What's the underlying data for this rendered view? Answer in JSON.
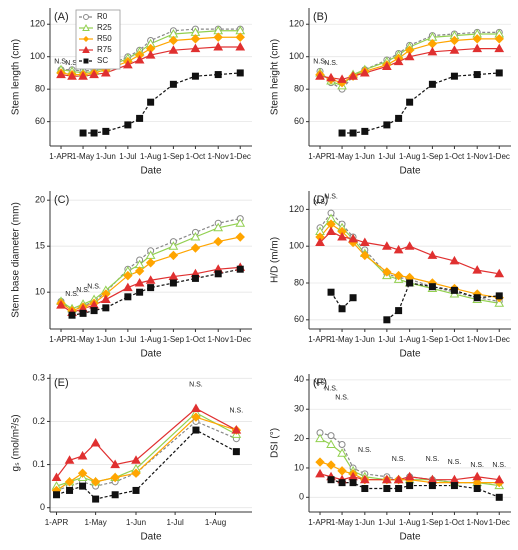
{
  "chart_data": [
    {
      "type": "line",
      "panel": "(A)",
      "y_label": "Stem length (cm)",
      "x_label": "Date",
      "legend": "top-left",
      "x": [
        0,
        15,
        30,
        45,
        61,
        91,
        107,
        122,
        153,
        183,
        214,
        244
      ],
      "xlim": [
        -15,
        260
      ],
      "xticks": [
        {
          "value": 0,
          "label": "1-APR"
        },
        {
          "value": 30,
          "label": "1-May"
        },
        {
          "value": 61,
          "label": "1-Jun"
        },
        {
          "value": 91,
          "label": "1-Jul"
        },
        {
          "value": 122,
          "label": "1-Aug"
        },
        {
          "value": 153,
          "label": "1-Sep"
        },
        {
          "value": 183,
          "label": "1-Oct"
        },
        {
          "value": 214,
          "label": "1-Nov"
        },
        {
          "value": 244,
          "label": "1-Dec"
        }
      ],
      "ylim": [
        45,
        130
      ],
      "yticks": [
        60,
        80,
        100,
        120
      ],
      "grid": true,
      "annotations": [
        {
          "text": "N.S.",
          "x": 0,
          "y": 97
        },
        {
          "text": "N.S.",
          "x": 15,
          "y": 96
        }
      ],
      "series": [
        {
          "name": "R0",
          "color": "#888888",
          "marker": "circle",
          "dashed": true,
          "values": [
            92,
            92,
            91,
            92,
            94,
            100,
            104,
            110,
            116,
            117,
            117,
            117
          ]
        },
        {
          "name": "R25",
          "color": "#92d050",
          "marker": "triangle-open",
          "dashed": false,
          "values": [
            92,
            91,
            90,
            91,
            93,
            99,
            103,
            108,
            114,
            115,
            116,
            116
          ]
        },
        {
          "name": "R50",
          "color": "#ffa500",
          "marker": "diamond",
          "dashed": false,
          "values": [
            90,
            89,
            89,
            90,
            92,
            97,
            101,
            105,
            110,
            111,
            112,
            112
          ]
        },
        {
          "name": "R75",
          "color": "#e03030",
          "marker": "triangle",
          "dashed": false,
          "values": [
            89,
            88,
            88,
            89,
            90,
            95,
            98,
            101,
            104,
            105,
            106,
            106
          ]
        },
        {
          "name": "SC",
          "color": "#111111",
          "marker": "square",
          "dashed": true,
          "values": [
            null,
            null,
            53,
            53,
            54,
            58,
            62,
            72,
            83,
            88,
            89,
            90
          ]
        }
      ]
    },
    {
      "type": "line",
      "panel": "(B)",
      "y_label": "Stem height (cm)",
      "x_label": "Date",
      "x": [
        0,
        15,
        30,
        45,
        61,
        91,
        107,
        122,
        153,
        183,
        214,
        244
      ],
      "xlim": [
        -15,
        260
      ],
      "xticks": [
        {
          "value": 0,
          "label": "1-APR"
        },
        {
          "value": 30,
          "label": "1-May"
        },
        {
          "value": 61,
          "label": "1-Jun"
        },
        {
          "value": 91,
          "label": "1-Jul"
        },
        {
          "value": 122,
          "label": "1-Aug"
        },
        {
          "value": 153,
          "label": "1-Sep"
        },
        {
          "value": 183,
          "label": "1-Oct"
        },
        {
          "value": 214,
          "label": "1-Nov"
        },
        {
          "value": 244,
          "label": "1-Dec"
        }
      ],
      "ylim": [
        45,
        130
      ],
      "yticks": [
        60,
        80,
        100,
        120
      ],
      "grid": true,
      "annotations": [
        {
          "text": "N.S.",
          "x": 0,
          "y": 97
        },
        {
          "text": "N.S.",
          "x": 15,
          "y": 96
        }
      ],
      "series": [
        {
          "name": "R0",
          "color": "#888888",
          "marker": "circle",
          "dashed": true,
          "values": [
            91,
            84,
            80,
            88,
            92,
            98,
            102,
            107,
            113,
            114,
            115,
            115
          ]
        },
        {
          "name": "R25",
          "color": "#92d050",
          "marker": "triangle-open",
          "dashed": false,
          "values": [
            90,
            85,
            82,
            89,
            92,
            97,
            101,
            106,
            112,
            113,
            114,
            114
          ]
        },
        {
          "name": "R50",
          "color": "#ffa500",
          "marker": "diamond",
          "dashed": false,
          "values": [
            89,
            86,
            84,
            88,
            91,
            95,
            99,
            104,
            108,
            110,
            111,
            111
          ]
        },
        {
          "name": "R75",
          "color": "#e03030",
          "marker": "triangle",
          "dashed": false,
          "values": [
            88,
            87,
            86,
            88,
            90,
            94,
            97,
            100,
            103,
            104,
            105,
            105
          ]
        },
        {
          "name": "SC",
          "color": "#111111",
          "marker": "square",
          "dashed": true,
          "values": [
            null,
            null,
            53,
            53,
            54,
            58,
            62,
            72,
            83,
            88,
            89,
            90
          ]
        }
      ]
    },
    {
      "type": "line",
      "panel": "(C)",
      "y_label": "Stem base diameter (mm)",
      "x_label": "Date",
      "x": [
        0,
        15,
        30,
        45,
        61,
        91,
        107,
        122,
        153,
        183,
        214,
        244
      ],
      "xlim": [
        -15,
        260
      ],
      "xticks": [
        {
          "value": 0,
          "label": "1-APR"
        },
        {
          "value": 30,
          "label": "1-May"
        },
        {
          "value": 61,
          "label": "1-Jun"
        },
        {
          "value": 91,
          "label": "1-Jul"
        },
        {
          "value": 122,
          "label": "1-Aug"
        },
        {
          "value": 153,
          "label": "1-Sep"
        },
        {
          "value": 183,
          "label": "1-Oct"
        },
        {
          "value": 214,
          "label": "1-Nov"
        },
        {
          "value": 244,
          "label": "1-Dec"
        }
      ],
      "ylim": [
        6,
        21
      ],
      "yticks": [
        10,
        15,
        20
      ],
      "grid": true,
      "annotations": [
        {
          "text": "N.S.",
          "x": 15,
          "y": 9.8
        },
        {
          "text": "N.S.",
          "x": 30,
          "y": 10.2
        },
        {
          "text": "N.S.",
          "x": 45,
          "y": 10.6
        }
      ],
      "series": [
        {
          "name": "R0",
          "color": "#888888",
          "marker": "circle",
          "dashed": true,
          "values": [
            9,
            8,
            8.5,
            9,
            10,
            12.5,
            13.5,
            14.5,
            15.5,
            16.5,
            17.5,
            18
          ]
        },
        {
          "name": "R25",
          "color": "#92d050",
          "marker": "triangle-open",
          "dashed": false,
          "values": [
            9,
            8.2,
            8.7,
            9.2,
            10.2,
            12.3,
            13,
            14,
            15,
            16,
            17,
            17.5
          ]
        },
        {
          "name": "R50",
          "color": "#ffa500",
          "marker": "diamond",
          "dashed": false,
          "values": [
            8.8,
            8,
            8.4,
            8.8,
            9.8,
            11.8,
            12.3,
            13.2,
            14,
            14.8,
            15.5,
            16
          ]
        },
        {
          "name": "R75",
          "color": "#e03030",
          "marker": "triangle",
          "dashed": false,
          "values": [
            8.6,
            7.8,
            8.2,
            8.6,
            9.2,
            10.5,
            11,
            11.3,
            11.7,
            12,
            12.5,
            12.7
          ]
        },
        {
          "name": "SC",
          "color": "#111111",
          "marker": "square",
          "dashed": true,
          "values": [
            null,
            7.5,
            7.7,
            8,
            8.3,
            9.5,
            10,
            10.5,
            11,
            11.5,
            12,
            12.5
          ]
        }
      ]
    },
    {
      "type": "line",
      "panel": "(D)",
      "y_label": "H/D (m/m)",
      "x_label": "Date",
      "x": [
        0,
        15,
        30,
        45,
        61,
        91,
        107,
        122,
        153,
        183,
        214,
        244
      ],
      "xlim": [
        -15,
        260
      ],
      "xticks": [
        {
          "value": 0,
          "label": "1-APR"
        },
        {
          "value": 30,
          "label": "1-May"
        },
        {
          "value": 61,
          "label": "1-Jun"
        },
        {
          "value": 91,
          "label": "1-Jul"
        },
        {
          "value": 122,
          "label": "1-Aug"
        },
        {
          "value": 153,
          "label": "1-Sep"
        },
        {
          "value": 183,
          "label": "1-Oct"
        },
        {
          "value": 214,
          "label": "1-Nov"
        },
        {
          "value": 244,
          "label": "1-Dec"
        }
      ],
      "ylim": [
        55,
        130
      ],
      "yticks": [
        60,
        80,
        100,
        120
      ],
      "grid": true,
      "annotations": [
        {
          "text": "N.S.",
          "x": 0,
          "y": 124
        },
        {
          "text": "N.S.",
          "x": 15,
          "y": 127
        }
      ],
      "series": [
        {
          "name": "R0",
          "color": "#888888",
          "marker": "circle",
          "dashed": true,
          "values": [
            110,
            118,
            112,
            105,
            98,
            85,
            83,
            82,
            78,
            75,
            72,
            70
          ]
        },
        {
          "name": "R25",
          "color": "#92d050",
          "marker": "triangle-open",
          "dashed": false,
          "values": [
            108,
            115,
            110,
            104,
            96,
            84,
            82,
            80,
            77,
            74,
            71,
            69
          ]
        },
        {
          "name": "R50",
          "color": "#ffa500",
          "marker": "diamond",
          "dashed": false,
          "values": [
            105,
            112,
            108,
            102,
            95,
            86,
            84,
            83,
            80,
            77,
            74,
            72
          ]
        },
        {
          "name": "R75",
          "color": "#e03030",
          "marker": "triangle",
          "dashed": false,
          "values": [
            102,
            108,
            105,
            104,
            102,
            100,
            98,
            100,
            95,
            92,
            87,
            85
          ]
        },
        {
          "name": "SC",
          "color": "#111111",
          "marker": "square",
          "dashed": true,
          "values": [
            null,
            75,
            66,
            72,
            null,
            60,
            65,
            80,
            78,
            76,
            72,
            73
          ]
        }
      ]
    },
    {
      "type": "line",
      "panel": "(E)",
      "y_label": "gₛ (mol/m²/s)",
      "x_label": "Date",
      "x": [
        0,
        10,
        20,
        30,
        45,
        61,
        107,
        138
      ],
      "xlim": [
        -5,
        150
      ],
      "xticks": [
        {
          "value": 0,
          "label": "1-APR"
        },
        {
          "value": 30,
          "label": "1-May"
        },
        {
          "value": 61,
          "label": "1-Jun"
        },
        {
          "value": 91,
          "label": "1-Jul"
        },
        {
          "value": 122,
          "label": "1-Aug"
        }
      ],
      "ylim": [
        -0.01,
        0.31
      ],
      "yticks": [
        0,
        0.1,
        0.2,
        0.3
      ],
      "grid": true,
      "annotations": [
        {
          "text": "N.S.",
          "x": 107,
          "y": 0.285
        },
        {
          "text": "N.S.",
          "x": 138,
          "y": 0.225
        }
      ],
      "series": [
        {
          "name": "R0",
          "color": "#888888",
          "marker": "circle",
          "dashed": true,
          "values": [
            0.04,
            0.05,
            0.06,
            0.05,
            0.06,
            0.08,
            0.2,
            0.16
          ]
        },
        {
          "name": "R25",
          "color": "#92d050",
          "marker": "triangle-open",
          "dashed": false,
          "values": [
            0.05,
            0.06,
            0.07,
            0.06,
            0.07,
            0.09,
            0.22,
            0.17
          ]
        },
        {
          "name": "R50",
          "color": "#ffa500",
          "marker": "diamond",
          "dashed": false,
          "values": [
            0.04,
            0.06,
            0.08,
            0.06,
            0.07,
            0.08,
            0.21,
            0.18
          ]
        },
        {
          "name": "R75",
          "color": "#e03030",
          "marker": "triangle",
          "dashed": false,
          "values": [
            0.07,
            0.11,
            0.12,
            0.15,
            0.1,
            0.11,
            0.23,
            0.18
          ]
        },
        {
          "name": "SC",
          "color": "#111111",
          "marker": "square",
          "dashed": true,
          "values": [
            0.03,
            0.04,
            0.05,
            0.02,
            0.03,
            0.04,
            0.18,
            0.13
          ]
        }
      ]
    },
    {
      "type": "line",
      "panel": "(F)",
      "y_label": "DSI (°)",
      "x_label": "Date",
      "x": [
        0,
        15,
        30,
        45,
        61,
        91,
        107,
        122,
        153,
        183,
        214,
        244
      ],
      "xlim": [
        -15,
        260
      ],
      "xticks": [
        {
          "value": 0,
          "label": "1-APR"
        },
        {
          "value": 30,
          "label": "1-May"
        },
        {
          "value": 61,
          "label": "1-Jun"
        },
        {
          "value": 91,
          "label": "1-Jul"
        },
        {
          "value": 122,
          "label": "1-Aug"
        },
        {
          "value": 153,
          "label": "1-Sep"
        },
        {
          "value": 183,
          "label": "1-Oct"
        },
        {
          "value": 214,
          "label": "1-Nov"
        },
        {
          "value": 244,
          "label": "1-Dec"
        }
      ],
      "ylim": [
        -5,
        42
      ],
      "yticks": [
        0,
        10,
        20,
        30,
        40
      ],
      "grid": true,
      "annotations": [
        {
          "text": "N.S.",
          "x": 0,
          "y": 39
        },
        {
          "text": "N.S.",
          "x": 15,
          "y": 37
        },
        {
          "text": "N.S.",
          "x": 30,
          "y": 34
        },
        {
          "text": "N.S.",
          "x": 61,
          "y": 16
        },
        {
          "text": "N.S.",
          "x": 107,
          "y": 13
        },
        {
          "text": "N.S.",
          "x": 153,
          "y": 13
        },
        {
          "text": "N.S.",
          "x": 183,
          "y": 12
        },
        {
          "text": "N.S.",
          "x": 214,
          "y": 11
        },
        {
          "text": "N.S.",
          "x": 244,
          "y": 11
        }
      ],
      "series": [
        {
          "name": "R0",
          "color": "#888888",
          "marker": "circle",
          "dashed": true,
          "values": [
            22,
            21,
            18,
            10,
            8,
            7,
            6,
            7,
            6,
            5,
            5,
            5
          ]
        },
        {
          "name": "R25",
          "color": "#92d050",
          "marker": "triangle-open",
          "dashed": false,
          "values": [
            20,
            18,
            15,
            9,
            7,
            6,
            6,
            6,
            6,
            5,
            5,
            4
          ]
        },
        {
          "name": "R50",
          "color": "#ffa500",
          "marker": "diamond",
          "dashed": false,
          "values": [
            12,
            11,
            9,
            8,
            6,
            6,
            6,
            6,
            5,
            5,
            5,
            5
          ]
        },
        {
          "name": "R75",
          "color": "#e03030",
          "marker": "triangle",
          "dashed": false,
          "values": [
            8,
            7,
            6,
            7,
            6,
            6,
            6,
            7,
            6,
            6,
            7,
            6
          ]
        },
        {
          "name": "SC",
          "color": "#111111",
          "marker": "square",
          "dashed": true,
          "values": [
            null,
            6,
            5,
            5,
            3,
            3,
            3,
            4,
            4,
            4,
            3,
            0
          ]
        }
      ]
    }
  ]
}
